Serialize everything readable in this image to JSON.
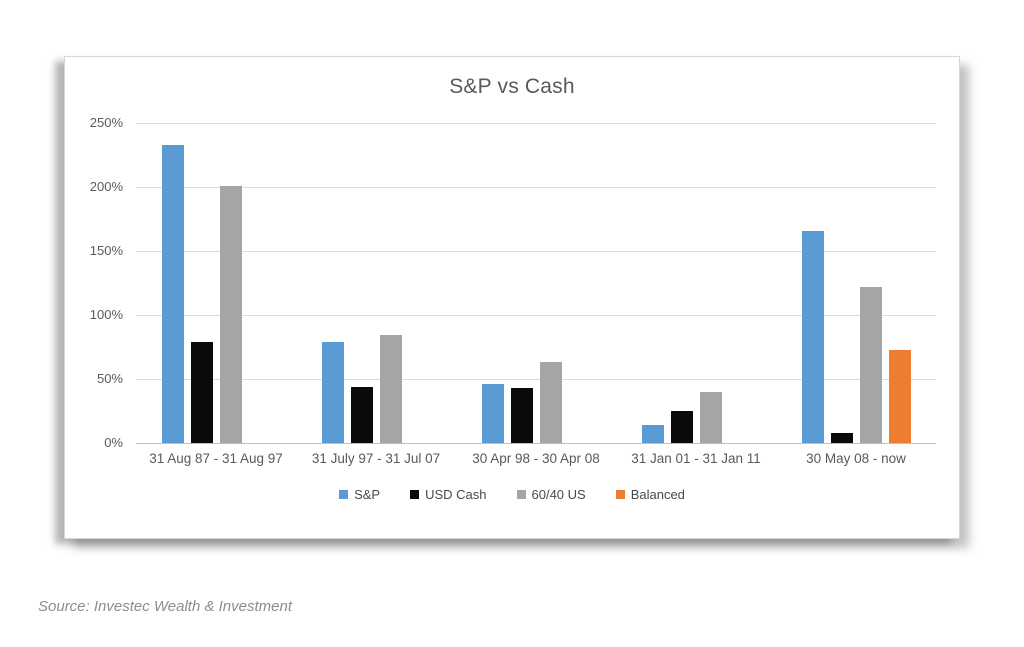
{
  "chart_data": {
    "type": "bar",
    "title": "S&P vs Cash",
    "categories": [
      "31 Aug 87 - 31 Aug 97",
      "31 July 97 - 31 Jul 07",
      "30 Apr 98 - 30 Apr 08",
      "31 Jan 01 - 31 Jan 11",
      "30 May 08 - now"
    ],
    "series": [
      {
        "name": "S&P",
        "color": "#5B9BD5",
        "values": [
          233,
          79,
          46,
          14,
          166
        ]
      },
      {
        "name": "USD Cash",
        "color": "#0a0a0a",
        "values": [
          79,
          44,
          43,
          25,
          8
        ]
      },
      {
        "name": "60/40 US",
        "color": "#A5A5A5",
        "values": [
          201,
          84,
          63,
          40,
          122
        ]
      },
      {
        "name": "Balanced",
        "color": "#ED7D31",
        "values": [
          null,
          null,
          null,
          null,
          73
        ]
      }
    ],
    "unit": "%",
    "ylim": [
      0,
      250
    ],
    "yticks": [
      {
        "label": "0%",
        "value": 0
      },
      {
        "label": "50%",
        "value": 50
      },
      {
        "label": "100%",
        "value": 100
      },
      {
        "label": "150%",
        "value": 150
      },
      {
        "label": "200%",
        "value": 200
      },
      {
        "label": "250%",
        "value": 250
      }
    ],
    "grid": true,
    "legend_position": "bottom"
  },
  "source": {
    "text": "Source: Investec Wealth & Investment"
  }
}
